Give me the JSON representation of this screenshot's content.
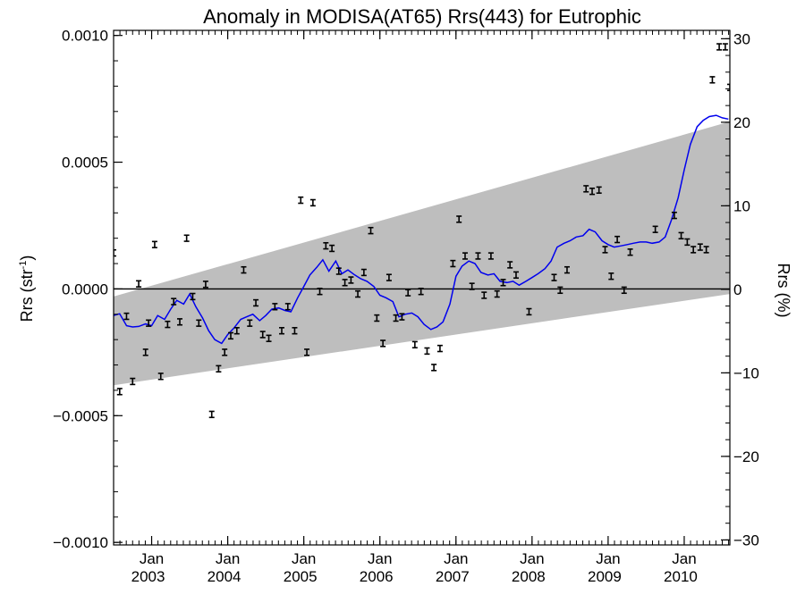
{
  "chart_data": {
    "type": "scatter",
    "title": "Anomaly in MODISA(AT65) Rrs(443) for Eutrophic",
    "ylabel_left_main": "Rrs (str",
    "ylabel_left_sup": "-1",
    "ylabel_left_close": ")",
    "ylabel_right": "Rrs (%)",
    "xlim": [
      2002.5,
      2010.6
    ],
    "ylim_left": [
      -0.00101,
      0.00102
    ],
    "ylim_right": [
      -30.6,
      31.0
    ],
    "yticks_left": [
      {
        "value": 0.001,
        "label": "0.0010"
      },
      {
        "value": 0.0005,
        "label": "0.0005"
      },
      {
        "value": 0.0,
        "label": "0.0000"
      },
      {
        "value": -0.0005,
        "label": "−0.0005"
      },
      {
        "value": -0.001,
        "label": "−0.0010"
      }
    ],
    "yticks_right": [
      {
        "value": 30,
        "label": "30"
      },
      {
        "value": 20,
        "label": "20"
      },
      {
        "value": 10,
        "label": "10"
      },
      {
        "value": 0,
        "label": "0"
      },
      {
        "value": -10,
        "label": "−10"
      },
      {
        "value": -20,
        "label": "−20"
      },
      {
        "value": -30,
        "label": "−30"
      }
    ],
    "xticks": [
      {
        "value": 2003.0,
        "month": "Jan",
        "year": "2003"
      },
      {
        "value": 2004.0,
        "month": "Jan",
        "year": "2004"
      },
      {
        "value": 2005.0,
        "month": "Jan",
        "year": "2005"
      },
      {
        "value": 2006.0,
        "month": "Jan",
        "year": "2006"
      },
      {
        "value": 2007.0,
        "month": "Jan",
        "year": "2007"
      },
      {
        "value": 2008.0,
        "month": "Jan",
        "year": "2008"
      },
      {
        "value": 2009.0,
        "month": "Jan",
        "year": "2009"
      },
      {
        "value": 2010.0,
        "month": "Jan",
        "year": "2010"
      }
    ],
    "zero_line": 0,
    "band": {
      "x": [
        2002.5,
        2010.6
      ],
      "upper": [
        -3e-05,
        0.00066
      ],
      "lower": [
        -0.00038,
        -2e-05
      ]
    },
    "points": [
      {
        "x": 2002.5,
        "y": 0.000142
      },
      {
        "x": 2002.58,
        "y": -0.000405
      },
      {
        "x": 2002.67,
        "y": -0.000108
      },
      {
        "x": 2002.75,
        "y": -0.000365
      },
      {
        "x": 2002.83,
        "y": 2e-05
      },
      {
        "x": 2002.92,
        "y": -0.00025
      },
      {
        "x": 2002.96,
        "y": -0.000135
      },
      {
        "x": 2003.04,
        "y": 0.000175
      },
      {
        "x": 2003.12,
        "y": -0.000345
      },
      {
        "x": 2003.21,
        "y": -0.00014
      },
      {
        "x": 2003.29,
        "y": -5e-05
      },
      {
        "x": 2003.37,
        "y": -0.00013
      },
      {
        "x": 2003.46,
        "y": 0.0002
      },
      {
        "x": 2003.54,
        "y": -3e-05
      },
      {
        "x": 2003.62,
        "y": -0.000135
      },
      {
        "x": 2003.71,
        "y": 1.8e-05
      },
      {
        "x": 2003.79,
        "y": -0.000495
      },
      {
        "x": 2003.88,
        "y": -0.000315
      },
      {
        "x": 2003.96,
        "y": -0.00025
      },
      {
        "x": 2004.04,
        "y": -0.000185
      },
      {
        "x": 2004.12,
        "y": -0.000165
      },
      {
        "x": 2004.21,
        "y": 7.5e-05
      },
      {
        "x": 2004.29,
        "y": -0.000135
      },
      {
        "x": 2004.37,
        "y": -5.5e-05
      },
      {
        "x": 2004.46,
        "y": -0.00018
      },
      {
        "x": 2004.54,
        "y": -0.000195
      },
      {
        "x": 2004.62,
        "y": -7e-05
      },
      {
        "x": 2004.71,
        "y": -0.000165
      },
      {
        "x": 2004.79,
        "y": -7e-05
      },
      {
        "x": 2004.88,
        "y": -0.000165
      },
      {
        "x": 2004.96,
        "y": 0.00035
      },
      {
        "x": 2005.04,
        "y": -0.00025
      },
      {
        "x": 2005.12,
        "y": 0.00034
      },
      {
        "x": 2005.21,
        "y": -1e-05
      },
      {
        "x": 2005.29,
        "y": 0.00017
      },
      {
        "x": 2005.37,
        "y": 0.00016
      },
      {
        "x": 2005.46,
        "y": 7e-05
      },
      {
        "x": 2005.54,
        "y": 2.5e-05
      },
      {
        "x": 2005.62,
        "y": 3.5e-05
      },
      {
        "x": 2005.71,
        "y": -2e-05
      },
      {
        "x": 2005.79,
        "y": 6.5e-05
      },
      {
        "x": 2005.88,
        "y": 0.00023
      },
      {
        "x": 2005.96,
        "y": -0.000115
      },
      {
        "x": 2006.04,
        "y": -0.000215
      },
      {
        "x": 2006.12,
        "y": 4.5e-05
      },
      {
        "x": 2006.21,
        "y": -0.000115
      },
      {
        "x": 2006.29,
        "y": -0.00011
      },
      {
        "x": 2006.37,
        "y": -1.5e-05
      },
      {
        "x": 2006.46,
        "y": -0.00022
      },
      {
        "x": 2006.54,
        "y": -1e-05
      },
      {
        "x": 2006.62,
        "y": -0.000245
      },
      {
        "x": 2006.71,
        "y": -0.00031
      },
      {
        "x": 2006.79,
        "y": -0.000235
      },
      {
        "x": 2006.96,
        "y": 0.0001
      },
      {
        "x": 2007.04,
        "y": 0.000275
      },
      {
        "x": 2007.12,
        "y": 0.00013
      },
      {
        "x": 2007.21,
        "y": 1e-05
      },
      {
        "x": 2007.29,
        "y": 0.00013
      },
      {
        "x": 2007.37,
        "y": -2.5e-05
      },
      {
        "x": 2007.46,
        "y": 0.00013
      },
      {
        "x": 2007.54,
        "y": -2e-05
      },
      {
        "x": 2007.62,
        "y": 2.5e-05
      },
      {
        "x": 2007.71,
        "y": 9.5e-05
      },
      {
        "x": 2007.79,
        "y": 5.5e-05
      },
      {
        "x": 2007.96,
        "y": -9e-05
      },
      {
        "x": 2008.29,
        "y": 4.5e-05
      },
      {
        "x": 2008.37,
        "y": -5e-06
      },
      {
        "x": 2008.46,
        "y": 7.5e-05
      },
      {
        "x": 2008.71,
        "y": 0.000395
      },
      {
        "x": 2008.79,
        "y": 0.000385
      },
      {
        "x": 2008.88,
        "y": 0.00039
      },
      {
        "x": 2008.96,
        "y": 0.000155
      },
      {
        "x": 2009.04,
        "y": 5e-05
      },
      {
        "x": 2009.12,
        "y": 0.000195
      },
      {
        "x": 2009.21,
        "y": -5e-06
      },
      {
        "x": 2009.29,
        "y": 0.000145
      },
      {
        "x": 2009.62,
        "y": 0.000235
      },
      {
        "x": 2009.87,
        "y": 0.00029
      },
      {
        "x": 2009.96,
        "y": 0.00021
      },
      {
        "x": 2010.04,
        "y": 0.000185
      },
      {
        "x": 2010.12,
        "y": 0.000155
      },
      {
        "x": 2010.21,
        "y": 0.000165
      },
      {
        "x": 2010.29,
        "y": 0.000155
      },
      {
        "x": 2010.37,
        "y": 0.000825
      },
      {
        "x": 2010.46,
        "y": 0.000955
      },
      {
        "x": 2010.54,
        "y": 0.000955
      },
      {
        "x": 2010.6,
        "y": 0.000795
      }
    ],
    "error_bar_half_height": 1.2e-05,
    "series": [
      {
        "color": "#0000ee",
        "x": [
          2002.5,
          2002.58,
          2002.67,
          2002.75,
          2002.83,
          2002.92,
          2003.0,
          2003.08,
          2003.17,
          2003.25,
          2003.33,
          2003.42,
          2003.5,
          2003.58,
          2003.67,
          2003.75,
          2003.83,
          2003.92,
          2004.0,
          2004.08,
          2004.17,
          2004.25,
          2004.33,
          2004.42,
          2004.5,
          2004.58,
          2004.67,
          2004.75,
          2004.83,
          2004.92,
          2005.0,
          2005.08,
          2005.17,
          2005.25,
          2005.33,
          2005.42,
          2005.5,
          2005.58,
          2005.67,
          2005.75,
          2005.83,
          2005.92,
          2006.0,
          2006.08,
          2006.17,
          2006.25,
          2006.33,
          2006.42,
          2006.5,
          2006.58,
          2006.67,
          2006.75,
          2006.83,
          2006.92,
          2007.0,
          2007.08,
          2007.17,
          2007.25,
          2007.33,
          2007.42,
          2007.5,
          2007.58,
          2007.67,
          2007.75,
          2007.83,
          2007.92,
          2008.0,
          2008.08,
          2008.17,
          2008.25,
          2008.33,
          2008.42,
          2008.5,
          2008.58,
          2008.67,
          2008.75,
          2008.83,
          2008.92,
          2009.0,
          2009.08,
          2009.17,
          2009.25,
          2009.33,
          2009.42,
          2009.5,
          2009.58,
          2009.67,
          2009.75,
          2009.83,
          2009.92,
          2010.0,
          2010.08,
          2010.17,
          2010.25,
          2010.33,
          2010.42,
          2010.5,
          2010.58
        ],
        "y": [
          -0.000105,
          -9.8e-05,
          -0.000145,
          -0.00015,
          -0.000148,
          -0.000138,
          -0.000145,
          -0.000105,
          -0.00012,
          -8e-05,
          -4.5e-05,
          -6e-05,
          -2e-05,
          -7e-05,
          -0.000115,
          -0.000165,
          -0.0002,
          -0.000215,
          -0.00018,
          -0.000155,
          -0.00012,
          -0.00011,
          -0.0001,
          -0.000125,
          -0.000105,
          -8e-05,
          -7.5e-05,
          -8.5e-05,
          -9e-05,
          -3.5e-05,
          1e-05,
          5.5e-05,
          8.5e-05,
          0.000115,
          7e-05,
          0.00011,
          6e-05,
          7.5e-05,
          5.5e-05,
          4e-05,
          3e-05,
          1e-05,
          -2.5e-05,
          -3.5e-05,
          -5e-05,
          -0.00011,
          -0.0001,
          -9.5e-05,
          -0.00011,
          -0.00014,
          -0.00016,
          -0.00015,
          -0.00013,
          -6e-05,
          5e-05,
          9e-05,
          0.00011,
          0.0001,
          6.5e-05,
          5.5e-05,
          6e-05,
          3e-05,
          2.5e-05,
          3e-05,
          1.5e-05,
          3e-05,
          4.5e-05,
          6e-05,
          8e-05,
          0.00011,
          0.000165,
          0.00018,
          0.00019,
          0.000205,
          0.00021,
          0.000235,
          0.000225,
          0.00019,
          0.000175,
          0.000165,
          0.00017,
          0.000175,
          0.00018,
          0.000185,
          0.000185,
          0.00018,
          0.000185,
          0.000205,
          0.00027,
          0.00036,
          0.00047,
          0.00057,
          0.00064,
          0.000665,
          0.00068,
          0.000685,
          0.000675,
          0.00067
        ]
      }
    ]
  }
}
